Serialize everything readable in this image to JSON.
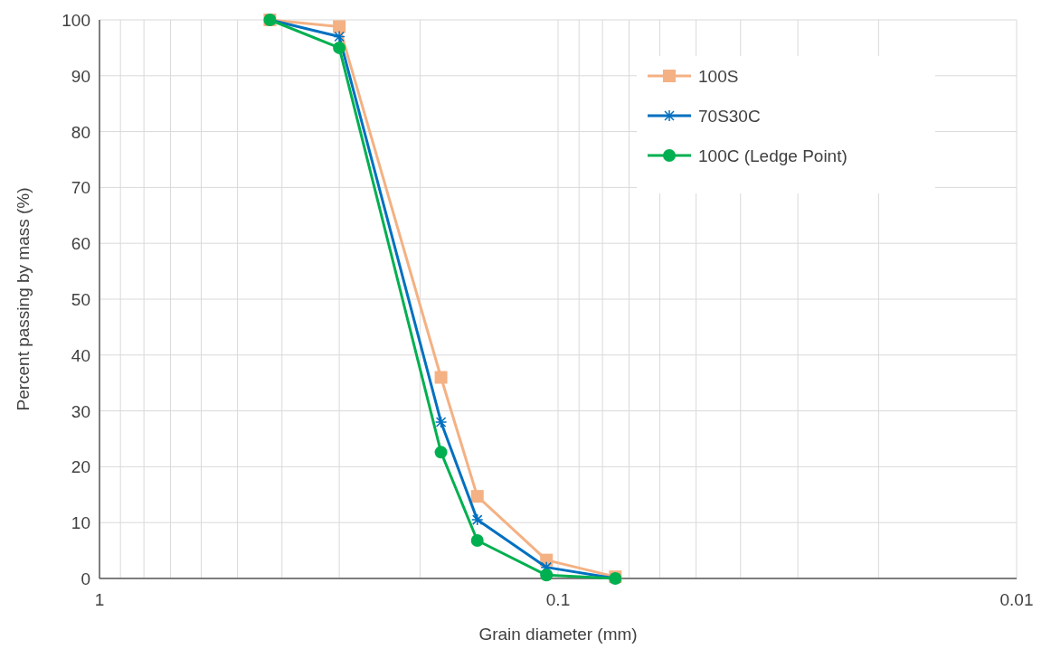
{
  "chart_data": {
    "type": "line",
    "xlabel": "Grain diameter (mm)",
    "ylabel": "Percent passing by mass (%)",
    "log": "x",
    "xlim": [
      1,
      0.01
    ],
    "ylim": [
      0,
      100
    ],
    "xticks": [
      1,
      {
        "value": 0.9,
        "label": null
      },
      {
        "value": 0.8,
        "label": null
      },
      {
        "value": 0.7,
        "label": null
      },
      {
        "value": 0.6,
        "label": null
      },
      {
        "value": 0.5,
        "label": null
      },
      {
        "value": 0.4,
        "label": null
      },
      {
        "value": 0.3,
        "label": null
      },
      {
        "value": 0.2,
        "label": null
      },
      0.1,
      {
        "value": 0.09,
        "label": null
      },
      {
        "value": 0.08,
        "label": null
      },
      {
        "value": 0.07,
        "label": null
      },
      {
        "value": 0.06,
        "label": null
      },
      {
        "value": 0.05,
        "label": null
      },
      {
        "value": 0.04,
        "label": null
      },
      {
        "value": 0.03,
        "label": null
      },
      {
        "value": 0.02,
        "label": null
      },
      0.01
    ],
    "yticks": [
      0,
      10,
      20,
      30,
      40,
      50,
      60,
      70,
      80,
      90,
      100
    ],
    "grid": true,
    "legend": "top right",
    "line_style": "solid",
    "x": [
      0.425,
      0.3,
      0.18,
      0.15,
      0.106,
      0.075
    ],
    "series": [
      {
        "name": "100S",
        "color": "#f4b183",
        "marker": "square",
        "values": [
          100,
          98.8,
          36,
          14.7,
          3.3,
          0.3
        ]
      },
      {
        "name": "70S30C",
        "color": "#0070c0",
        "marker": "cross",
        "values": [
          100,
          97,
          28,
          10.5,
          2,
          0
        ]
      },
      {
        "name": "100C (Ledge Point)",
        "color": "#00b050",
        "marker": "circle",
        "values": [
          100,
          95,
          22.6,
          6.8,
          0.6,
          0
        ]
      }
    ]
  }
}
